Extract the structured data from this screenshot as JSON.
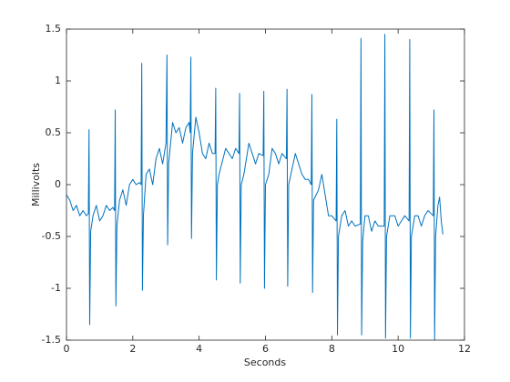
{
  "chart_data": {
    "type": "line",
    "xlabel": "Seconds",
    "ylabel": "Millivolts",
    "color": "#0072bd",
    "x": [
      0.0,
      0.1,
      0.2,
      0.3,
      0.4,
      0.5,
      0.6,
      0.66,
      0.68,
      0.7,
      0.73,
      0.8,
      0.9,
      1.0,
      1.1,
      1.2,
      1.3,
      1.4,
      1.45,
      1.47,
      1.49,
      1.52,
      1.6,
      1.7,
      1.8,
      1.9,
      2.0,
      2.1,
      2.2,
      2.25,
      2.27,
      2.29,
      2.32,
      2.4,
      2.5,
      2.6,
      2.7,
      2.8,
      2.9,
      3.0,
      3.03,
      3.05,
      3.08,
      3.2,
      3.3,
      3.4,
      3.5,
      3.6,
      3.7,
      3.73,
      3.75,
      3.77,
      3.8,
      3.9,
      4.0,
      4.1,
      4.2,
      4.3,
      4.4,
      4.48,
      4.5,
      4.52,
      4.55,
      4.6,
      4.8,
      4.9,
      5.0,
      5.1,
      5.2,
      5.22,
      5.24,
      5.27,
      5.35,
      5.5,
      5.6,
      5.7,
      5.8,
      5.93,
      5.95,
      5.97,
      6.0,
      6.1,
      6.2,
      6.3,
      6.4,
      6.5,
      6.63,
      6.65,
      6.67,
      6.7,
      6.8,
      6.9,
      7.0,
      7.1,
      7.2,
      7.3,
      7.38,
      7.4,
      7.42,
      7.45,
      7.6,
      7.7,
      7.8,
      7.9,
      8.0,
      8.13,
      8.15,
      8.17,
      8.2,
      8.3,
      8.4,
      8.5,
      8.6,
      8.7,
      8.86,
      8.88,
      8.9,
      8.93,
      9.0,
      9.1,
      9.2,
      9.3,
      9.4,
      9.58,
      9.6,
      9.62,
      9.65,
      9.75,
      9.9,
      10.0,
      10.1,
      10.2,
      10.33,
      10.35,
      10.37,
      10.4,
      10.5,
      10.6,
      10.7,
      10.8,
      10.9,
      11.06,
      11.08,
      11.1,
      11.13,
      11.2,
      11.25,
      11.3,
      11.35
    ],
    "values": [
      -0.1,
      -0.15,
      -0.25,
      -0.2,
      -0.3,
      -0.25,
      -0.3,
      -0.28,
      0.53,
      -1.35,
      -0.45,
      -0.3,
      -0.2,
      -0.35,
      -0.3,
      -0.2,
      -0.25,
      -0.22,
      -0.25,
      0.72,
      -1.17,
      -0.4,
      -0.15,
      -0.05,
      -0.2,
      0.0,
      0.05,
      0.0,
      0.02,
      0.0,
      1.17,
      -1.02,
      -0.3,
      0.1,
      0.15,
      0.0,
      0.25,
      0.35,
      0.2,
      0.4,
      1.25,
      -0.58,
      0.2,
      0.6,
      0.5,
      0.55,
      0.4,
      0.55,
      0.6,
      0.5,
      1.23,
      -0.52,
      0.3,
      0.65,
      0.5,
      0.3,
      0.25,
      0.4,
      0.3,
      0.3,
      0.93,
      -0.92,
      0.0,
      0.1,
      0.35,
      0.3,
      0.25,
      0.35,
      0.3,
      0.88,
      -0.95,
      0.0,
      0.1,
      0.4,
      0.3,
      0.2,
      0.3,
      0.28,
      0.9,
      -1.0,
      0.0,
      0.1,
      0.35,
      0.3,
      0.2,
      0.3,
      0.25,
      0.92,
      -0.98,
      0.0,
      0.15,
      0.3,
      0.2,
      0.1,
      0.05,
      0.05,
      0.0,
      0.87,
      -1.04,
      -0.15,
      -0.05,
      0.1,
      -0.1,
      -0.3,
      -0.3,
      -0.35,
      0.63,
      -1.45,
      -0.5,
      -0.3,
      -0.25,
      -0.4,
      -0.35,
      -0.4,
      -0.38,
      1.41,
      -1.45,
      -0.55,
      -0.3,
      -0.3,
      -0.45,
      -0.35,
      -0.4,
      -0.4,
      1.45,
      -1.48,
      -0.5,
      -0.3,
      -0.3,
      -0.4,
      -0.35,
      -0.3,
      -0.35,
      1.4,
      -1.48,
      -0.5,
      -0.3,
      -0.3,
      -0.4,
      -0.3,
      -0.25,
      -0.3,
      0.72,
      -1.5,
      -0.5,
      -0.2,
      -0.12,
      -0.35,
      -0.48
    ],
    "xlim": [
      0,
      12
    ],
    "xticks": [
      0,
      2,
      4,
      6,
      8,
      10,
      12
    ],
    "ylim": [
      -1.5,
      1.5
    ],
    "yticks": [
      -1.5,
      -1,
      -0.5,
      0,
      0.5,
      1,
      1.5
    ],
    "grid": false
  }
}
